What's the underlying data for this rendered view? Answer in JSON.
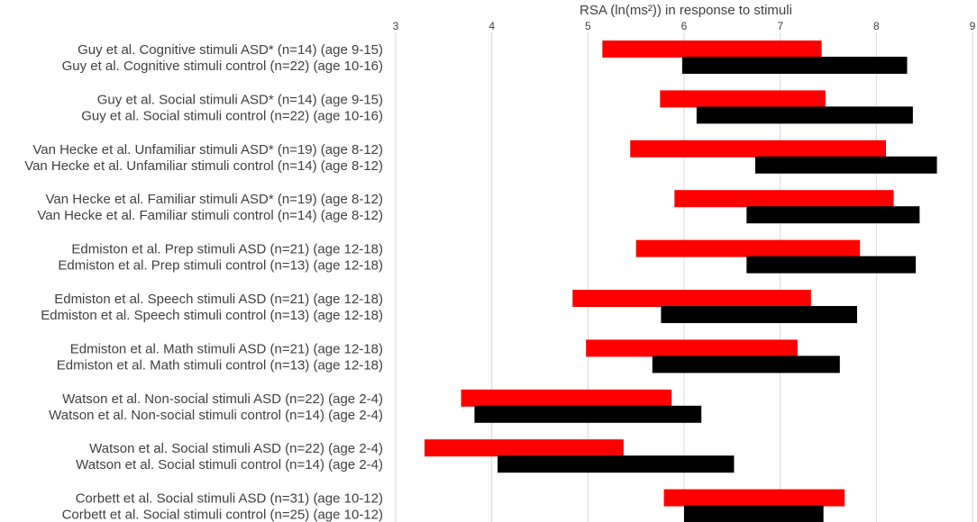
{
  "chart_data": {
    "type": "floating-bar",
    "title": "RSA (ln(ms²)) in response to stimuli",
    "xlim": [
      3,
      9
    ],
    "ticks": [
      3,
      4,
      5,
      6,
      7,
      8,
      9
    ],
    "grid": true,
    "series": [
      {
        "name": "ASD",
        "color": "#ff0000"
      },
      {
        "name": "control",
        "color": "#000000"
      }
    ],
    "rows": [
      {
        "label": "Guy et al. Cognitive stimuli ASD* (n=14) (age 9-15)",
        "group": "ASD",
        "range": [
          5.15,
          7.43
        ]
      },
      {
        "label": "Guy et al. Cognitive stimuli control (n=22) (age 10-16)",
        "group": "control",
        "range": [
          5.98,
          8.32
        ]
      },
      {
        "label": "Guy et al. Social stimuli ASD* (n=14) (age 9-15)",
        "group": "ASD",
        "range": [
          5.75,
          7.47
        ]
      },
      {
        "label": "Guy et al. Social stimuli control (n=22) (age 10-16)",
        "group": "control",
        "range": [
          6.13,
          8.38
        ]
      },
      {
        "label": "Van Hecke et al. Unfamiliar stimuli ASD* (n=19) (age 8-12)",
        "group": "ASD",
        "range": [
          5.44,
          8.1
        ]
      },
      {
        "label": "Van Hecke et al. Unfamiliar stimuli control (n=14) (age 8-12)",
        "group": "control",
        "range": [
          6.74,
          8.63
        ]
      },
      {
        "label": "Van Hecke et al. Familiar stimuli ASD* (n=19) (age 8-12)",
        "group": "ASD",
        "range": [
          5.9,
          8.18
        ]
      },
      {
        "label": "Van Hecke et al. Familiar stimuli control (n=14) (age 8-12)",
        "group": "control",
        "range": [
          6.65,
          8.45
        ]
      },
      {
        "label": "Edmiston et al. Prep stimuli ASD (n=21) (age 12-18)",
        "group": "ASD",
        "range": [
          5.5,
          7.83
        ]
      },
      {
        "label": "Edmiston et al. Prep stimuli control (n=13) (age 12-18)",
        "group": "control",
        "range": [
          6.65,
          8.41
        ]
      },
      {
        "label": "Edmiston et al. Speech stimuli ASD (n=21) (age 12-18)",
        "group": "ASD",
        "range": [
          4.84,
          7.32
        ]
      },
      {
        "label": "Edmiston et al. Speech stimuli control (n=13) (age 12-18)",
        "group": "control",
        "range": [
          5.76,
          7.8
        ]
      },
      {
        "label": "Edmiston et al. Math stimuli ASD (n=21) (age 12-18)",
        "group": "ASD",
        "range": [
          4.98,
          7.18
        ]
      },
      {
        "label": "Edmiston et al. Math stimuli control (n=13) (age 12-18)",
        "group": "control",
        "range": [
          5.67,
          7.62
        ]
      },
      {
        "label": "Watson et al. Non-social stimuli ASD (n=22) (age 2-4)",
        "group": "ASD",
        "range": [
          3.68,
          5.87
        ]
      },
      {
        "label": "Watson et al. Non-social stimuli control (n=14) (age 2-4)",
        "group": "control",
        "range": [
          3.82,
          6.18
        ]
      },
      {
        "label": "Watson et al. Social stimuli ASD (n=22) (age 2-4)",
        "group": "ASD",
        "range": [
          3.3,
          5.37
        ]
      },
      {
        "label": "Watson et al. Social stimuli control (n=14) (age 2-4)",
        "group": "control",
        "range": [
          4.06,
          6.52
        ]
      },
      {
        "label": "Corbett et al. Social stimuli ASD (n=31) (age 10-12)",
        "group": "ASD",
        "range": [
          5.79,
          7.67
        ]
      },
      {
        "label": "Corbett et al. Social stimuli control (n=25) (age 10-12)",
        "group": "control",
        "range": [
          6.0,
          7.45
        ]
      }
    ]
  }
}
